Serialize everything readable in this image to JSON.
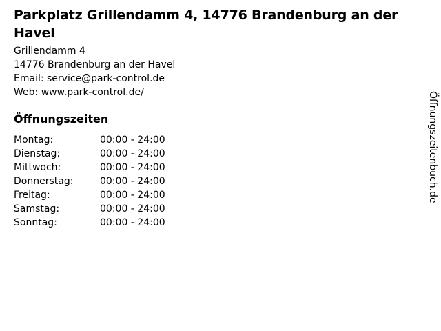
{
  "page": {
    "background": "#ffffff",
    "text_color": "#000000"
  },
  "header": {
    "title": "Parkplatz Grillendamm 4, 14776 Brandenburg an der Havel"
  },
  "contact": {
    "street": "Grillendamm 4",
    "city": "14776 Brandenburg an der Havel",
    "email_label": "Email:",
    "email_value": "service@park-control.de",
    "web_label": "Web:",
    "web_value": "www.park-control.de/"
  },
  "opening_hours": {
    "heading": "Öffnungszeiten",
    "rows": [
      {
        "day": "Montag:",
        "hours": "00:00 - 24:00"
      },
      {
        "day": "Dienstag:",
        "hours": "00:00 - 24:00"
      },
      {
        "day": "Mittwoch:",
        "hours": "00:00 - 24:00"
      },
      {
        "day": "Donnerstag:",
        "hours": "00:00 - 24:00"
      },
      {
        "day": "Freitag:",
        "hours": "00:00 - 24:00"
      },
      {
        "day": "Samstag:",
        "hours": "00:00 - 24:00"
      },
      {
        "day": "Sonntag:",
        "hours": "00:00 - 24:00"
      }
    ]
  },
  "branding": {
    "vertical_label": "Öffnungszeitenbuch.de"
  }
}
